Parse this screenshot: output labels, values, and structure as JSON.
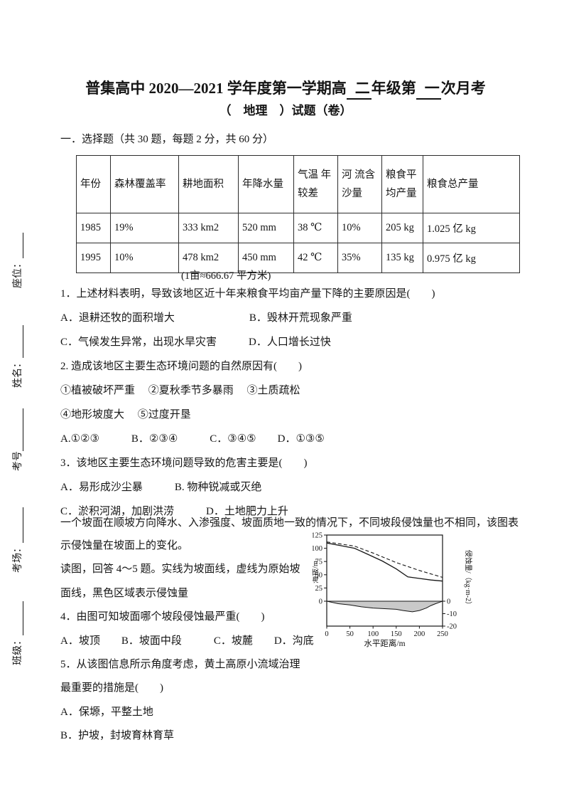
{
  "page": {
    "subtitle": "（　地理　）试题（卷）",
    "section_heading": "一．选择题（共 30 题，每题 2 分，共 60 分）"
  },
  "title_parts": [
    {
      "text": "普集高中 2020—2021 学年度第一学期高",
      "blank": false
    },
    {
      "text": "二",
      "blank": true
    },
    {
      "text": "年级第",
      "blank": false
    },
    {
      "text": "一",
      "blank": true
    },
    {
      "text": "次月考",
      "blank": false
    }
  ],
  "margin_fields": [
    {
      "label": "座位："
    },
    {
      "label": "姓名："
    },
    {
      "label": "考号"
    },
    {
      "label": "考场："
    },
    {
      "label": "班级："
    }
  ],
  "table": {
    "headers": [
      "年份",
      "森林覆盖率",
      "耕地面积",
      "年降水量",
      "气温 年较差",
      "河 流含沙量",
      "粮食平均产量",
      "粮食总产量"
    ],
    "rows": [
      [
        "1985",
        "19%",
        "333 km2",
        "520 mm",
        "38 ℃",
        "10%",
        "205 kg",
        "1.025 亿  kg"
      ],
      [
        "1995",
        "10%",
        "478 km2",
        "450 mm",
        "42 ℃",
        "35%",
        "135 kg",
        "0.975  亿  kg"
      ]
    ],
    "note": "(1亩≈666.67 平方米)"
  },
  "body_lines": [
    "1．上述材料表明，导致该地区近十年来粮食平均亩产量下降的主要原因是(　　)",
    "A．退耕还牧的面积增大　　　　　　　B．毁林开荒现象严重",
    "C．气候发生异常，出现水旱灾害　　　D．人口增长过快",
    "2. 造成该地区主要生态环境问题的自然原因有(　　)",
    "①植被破坏严重　 ②夏秋季节多暴雨　 ③土质疏松",
    "④地形坡度大　 ⑤过度开垦",
    "A.①②③　　　B．②③④　　　C．③④⑤　　D．①③⑤",
    "3．该地区主要生态环境问题导致的危害主要是(　　)",
    "A．易形成沙尘暴　　　B. 物种锐减或灭绝",
    "C．淤积河湖，加剧洪涝　　　D．土地肥力上升"
  ],
  "passage_line": "一个坡面在顺坡方向降水、入渗强度、坡面质地一致的情况下，不同坡段侵蚀量也不相同，该图表",
  "left_lines": [
    "示侵蚀量在坡面上的变化。",
    "读图，回答 4～5 题。实线为坡面线，虚线为原始坡",
    "面线，黑色区域表示侵蚀量",
    "4．由图可知坡面哪个坡段侵蚀最严重(　　)",
    "A．坡顶　　B．坡面中段　　　C．坡麓　　D．沟底",
    "5．从该图信息所示角度考虑，黄土高原小流域治理",
    "最重要的措施是(　　)",
    "A．保塬，平整土地",
    "B．护坡，封坡育林育草"
  ],
  "chart_data": {
    "type": "line",
    "xlabel": "水平距离/m",
    "ylabel_left": "海拔/m",
    "ylabel_right": "侵蚀量/（kg·m-2）",
    "xlim": [
      0,
      250
    ],
    "ylim_left": [
      0,
      125
    ],
    "ylim_right": [
      -20,
      0
    ],
    "x_ticks": [
      "0",
      "50",
      "100",
      "150",
      "200",
      "250"
    ],
    "left_ticks": [
      "125",
      "100",
      "75",
      "50",
      "25",
      "0"
    ],
    "right_ticks": [
      "0",
      "-10",
      "-20"
    ],
    "legend_note": "实线为坡面线，虚线为原始坡面线，黑色区域表示侵蚀量",
    "area_color": "#c9c9c9",
    "line_color": "#151515",
    "series": [
      {
        "name": "坡面线",
        "style": "solid",
        "axis": "left",
        "points": [
          [
            0,
            110
          ],
          [
            30,
            105
          ],
          [
            60,
            100
          ],
          [
            90,
            88
          ],
          [
            120,
            76
          ],
          [
            150,
            61
          ],
          [
            175,
            46
          ],
          [
            200,
            43
          ],
          [
            225,
            40
          ],
          [
            250,
            38
          ]
        ]
      },
      {
        "name": "原始坡面线",
        "style": "dashed",
        "axis": "left",
        "points": [
          [
            0,
            112
          ],
          [
            30,
            108
          ],
          [
            60,
            104
          ],
          [
            100,
            91
          ],
          [
            150,
            73
          ],
          [
            200,
            58
          ],
          [
            250,
            45
          ]
        ]
      },
      {
        "name": "侵蚀量",
        "style": "area",
        "axis": "right",
        "points": [
          [
            0,
            0
          ],
          [
            25,
            -2
          ],
          [
            50,
            -3
          ],
          [
            75,
            -4.5
          ],
          [
            100,
            -5.5
          ],
          [
            125,
            -6
          ],
          [
            150,
            -6.5
          ],
          [
            165,
            -7.5
          ],
          [
            185,
            -8.5
          ],
          [
            200,
            -7.5
          ],
          [
            215,
            -5.5
          ],
          [
            225,
            -3.5
          ],
          [
            235,
            -2
          ],
          [
            245,
            -0.7
          ],
          [
            250,
            0
          ]
        ]
      }
    ]
  }
}
